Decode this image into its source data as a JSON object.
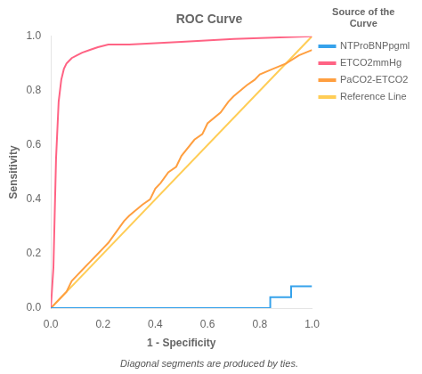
{
  "chart_data": {
    "type": "line",
    "title": "ROC Curve",
    "x_label": "1 - Specificity",
    "y_label": "Sensitivity",
    "footnote": "Diagonal segments are produced by ties.",
    "legend_title": "Source of the\nCurve",
    "legend": "upper right",
    "grid": false,
    "xlim": [
      0.0,
      1.0
    ],
    "ylim": [
      0.0,
      1.0
    ],
    "xticks": [
      {
        "value": 0.0,
        "label": "0.0"
      },
      0.2,
      0.4,
      0.6,
      0.8,
      {
        "value": 1.0,
        "label": "1.0"
      }
    ],
    "yticks": [
      {
        "value": 0.0,
        "label": "0.0"
      },
      0.2,
      0.4,
      0.6,
      0.8,
      {
        "value": 1.0,
        "label": "1.0"
      }
    ],
    "series": [
      {
        "name": "NTProBNPpgml",
        "x": [
          0.0,
          0.8,
          0.8,
          0.84,
          0.84,
          0.88,
          0.88,
          0.92,
          0.92,
          0.96,
          0.96,
          1.0,
          1.0
        ],
        "values": [
          0.0,
          0.0,
          0.0,
          0.0,
          0.04,
          0.04,
          0.04,
          0.04,
          0.08,
          0.08,
          0.08,
          0.08,
          0.08
        ]
      },
      {
        "name": "ETCO2mmHg",
        "x": [
          0.0,
          0.01,
          0.02,
          0.03,
          0.04,
          0.05,
          0.06,
          0.07,
          0.08,
          0.1,
          0.12,
          0.15,
          0.18,
          0.22,
          0.3,
          0.5,
          0.7,
          1.0
        ],
        "values": [
          0.0,
          0.15,
          0.55,
          0.76,
          0.84,
          0.88,
          0.9,
          0.91,
          0.92,
          0.93,
          0.94,
          0.95,
          0.96,
          0.97,
          0.97,
          0.98,
          0.99,
          1.0
        ]
      },
      {
        "name": "PaCO2-ETCO2",
        "x": [
          0.0,
          0.02,
          0.04,
          0.06,
          0.08,
          0.1,
          0.12,
          0.15,
          0.18,
          0.2,
          0.22,
          0.25,
          0.28,
          0.3,
          0.35,
          0.38,
          0.4,
          0.42,
          0.45,
          0.48,
          0.5,
          0.55,
          0.58,
          0.6,
          0.65,
          0.68,
          0.7,
          0.75,
          0.78,
          0.8,
          0.85,
          0.9,
          0.95,
          1.0
        ],
        "values": [
          0.0,
          0.02,
          0.04,
          0.06,
          0.1,
          0.12,
          0.14,
          0.17,
          0.2,
          0.22,
          0.24,
          0.28,
          0.32,
          0.34,
          0.38,
          0.4,
          0.44,
          0.46,
          0.5,
          0.52,
          0.56,
          0.62,
          0.64,
          0.68,
          0.72,
          0.76,
          0.78,
          0.82,
          0.84,
          0.86,
          0.88,
          0.9,
          0.93,
          0.95
        ]
      },
      {
        "name": "Reference Line",
        "x": [
          0,
          1
        ],
        "values": [
          0,
          1
        ]
      }
    ]
  }
}
